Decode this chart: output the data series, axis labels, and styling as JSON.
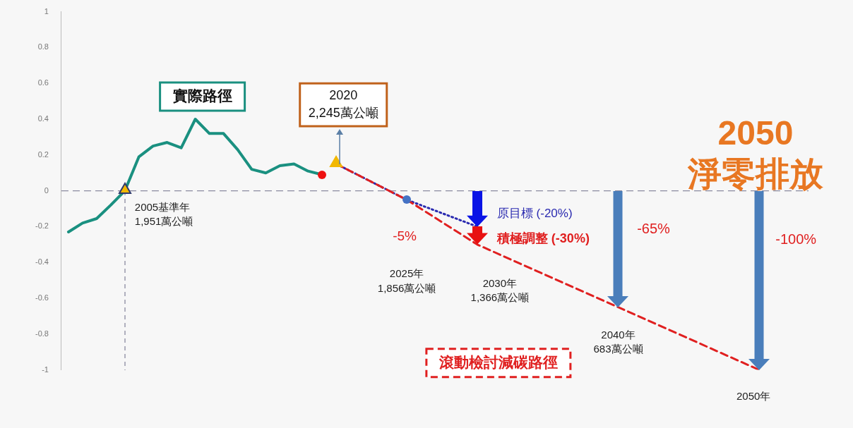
{
  "chart_data": {
    "type": "line",
    "title": "2050\n淨零排放",
    "categories": [
      null,
      null,
      null,
      null,
      null,
      null,
      null,
      null,
      null,
      null,
      null,
      null,
      null,
      null,
      null,
      null,
      null,
      null,
      null,
      null,
      null,
      null,
      null,
      null,
      null,
      null,
      null,
      null,
      null,
      null,
      null,
      null,
      null,
      null,
      null,
      null,
      null,
      null,
      null,
      null,
      null,
      null,
      null,
      null,
      null,
      null,
      null,
      null,
      null,
      null,
      null,
      null,
      null
    ],
    "ylim": [
      -1,
      1
    ],
    "yticks": [
      -1,
      -0.8,
      -0.6,
      -0.4,
      -0.2,
      0,
      0.2,
      0.4,
      0.6,
      0.8,
      1
    ],
    "grid": false,
    "series": [
      {
        "name": "實際路徑",
        "color": "#1a9080",
        "marker": "none",
        "line_style": "solid",
        "values": [
          -0.23,
          -0.18,
          -0.155,
          -0.08,
          0,
          0.19,
          0.25,
          0.27,
          0.24,
          0.4,
          0.32,
          0.32,
          0.23,
          0.12,
          0.1,
          0.14,
          0.15,
          0.11,
          0.09,
          null,
          null,
          null,
          null,
          null,
          null,
          null,
          null,
          null,
          null,
          null,
          null,
          null,
          null,
          null,
          null,
          null,
          null,
          null,
          null,
          null,
          null,
          null,
          null,
          null,
          null,
          null,
          null,
          null,
          null,
          null,
          null,
          null,
          null
        ]
      },
      {
        "name": "滾動檢討減碳路徑",
        "color": "#e02020",
        "marker": "none",
        "line_style": "dashed",
        "values": [
          null,
          null,
          null,
          null,
          null,
          null,
          null,
          null,
          null,
          null,
          null,
          null,
          null,
          null,
          null,
          null,
          null,
          null,
          null,
          0.15,
          null,
          null,
          null,
          null,
          -0.05,
          null,
          null,
          null,
          null,
          -0.3,
          null,
          null,
          null,
          null,
          null,
          null,
          null,
          null,
          null,
          -0.65,
          null,
          null,
          null,
          null,
          null,
          null,
          null,
          null,
          null,
          -1,
          null,
          null,
          null
        ]
      },
      {
        "color": "#2a2ab0",
        "marker": "none",
        "line_style": "dotted",
        "values": [
          null,
          null,
          null,
          null,
          null,
          null,
          null,
          null,
          null,
          null,
          null,
          null,
          null,
          null,
          null,
          null,
          null,
          null,
          null,
          0.15,
          null,
          null,
          null,
          null,
          -0.05,
          null,
          null,
          null,
          null,
          -0.2,
          null,
          null,
          null,
          null,
          null,
          null,
          null,
          null,
          null,
          null,
          null,
          null,
          null,
          null,
          null,
          null,
          null,
          null,
          null,
          null,
          null,
          null,
          null
        ]
      }
    ],
    "ref_lines": [
      {
        "axis": "y",
        "value": 0,
        "color": "#8a8aa0",
        "line_style": "dashed"
      }
    ],
    "annotations": [
      "2005基準年\n1,951萬公噸",
      "2020\n2,245萬公噸",
      "-5%",
      "2025年\n1,856萬公噸",
      "原目標 (-20%)",
      "積極調整 (-30%)",
      "2030年\n1,366萬公噸",
      "-65%",
      "-100%",
      "2040年\n683萬公噸",
      "2050年"
    ]
  }
}
